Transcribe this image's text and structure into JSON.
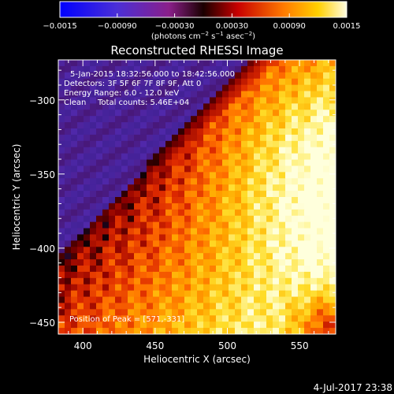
{
  "chart_data": {
    "type": "heatmap",
    "title": "Reconstructed RHESSI Image",
    "xlabel": "Heliocentric X (arcsec)",
    "ylabel": "Heliocentric Y (arcsec)",
    "xlim": [
      383,
      575
    ],
    "ylim": [
      -458,
      -273
    ],
    "x_ticks": [
      {
        "value": 400,
        "label": "400"
      },
      {
        "value": 450,
        "label": "450"
      },
      {
        "value": 500,
        "label": "500"
      },
      {
        "value": 550,
        "label": "550"
      }
    ],
    "y_ticks": [
      {
        "value": -300,
        "label": "−300"
      },
      {
        "value": -350,
        "label": "−350"
      },
      {
        "value": -400,
        "label": "−400"
      },
      {
        "value": -450,
        "label": "−450"
      }
    ],
    "colorbar": {
      "min": -0.0015,
      "max": 0.0015,
      "ticks": [
        {
          "value": -0.0015,
          "label": "−0.0015"
        },
        {
          "value": -0.0009,
          "label": "−0.00090"
        },
        {
          "value": -0.0003,
          "label": "−0.00030"
        },
        {
          "value": 0.0003,
          "label": "0.00030"
        },
        {
          "value": 0.0009,
          "label": "0.00090"
        },
        {
          "value": 0.0015,
          "label": "0.0015"
        }
      ],
      "unit_prefix": "(photons cm",
      "unit_sup1": "−2",
      "unit_mid": " s",
      "unit_sup2": "−1",
      "unit_mid2": " asec",
      "unit_sup3": "−2",
      "unit_suffix": ")"
    },
    "annotations": {
      "time_range": "5-Jan-2015 18:32:56.000 to 18:42:56.000",
      "detectors": "Detectors: 3F 5F 6F 7F 8F 9F, Att 0",
      "energy": "Energy Range: 6.0 - 12.0 keV",
      "method": "Clean",
      "total_counts": "Total counts: 5.46E+04",
      "peak": "Position of Peak = [571,-331]"
    },
    "peak": [
      571,
      -331
    ]
  },
  "footer": {
    "timestamp": "4-Jul-2017 23:38"
  }
}
